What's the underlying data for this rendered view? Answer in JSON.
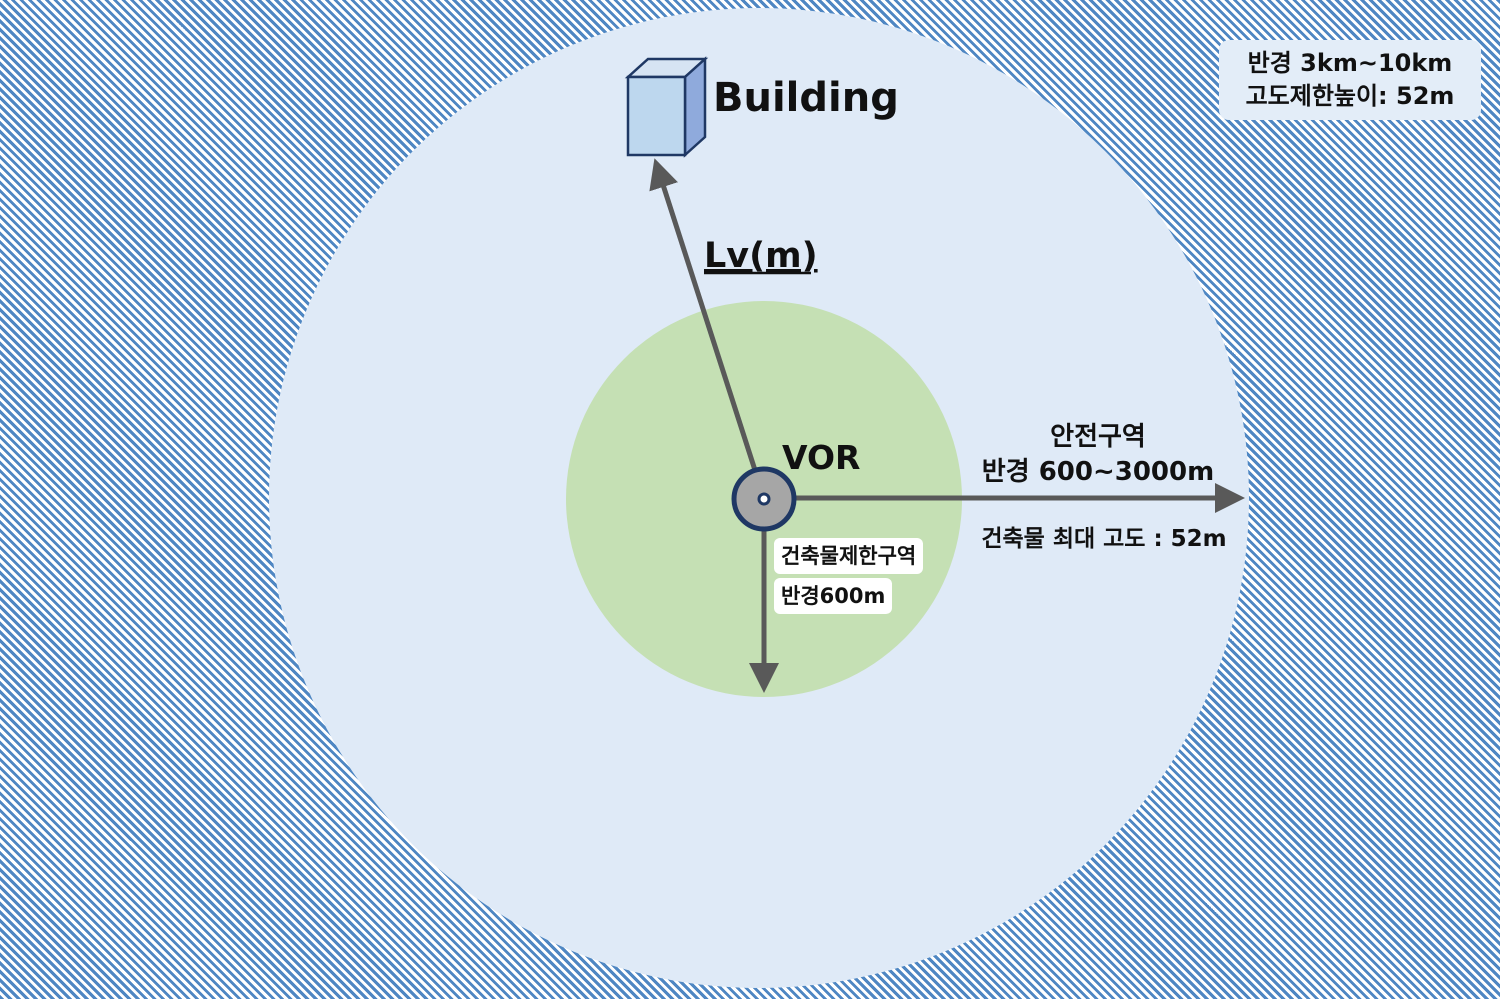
{
  "legend": {
    "radius_text": "반경 3km~10km",
    "height_text": "고도제한높이: 52m"
  },
  "building": {
    "label": "Building"
  },
  "distance": {
    "label": "Lv(m)"
  },
  "vor": {
    "label": "VOR"
  },
  "safety_zone": {
    "title": "안전구역",
    "radius": "반경 600~3000m",
    "max_height": "건축물 최대 고도 : 52m"
  },
  "restricted_zone": {
    "title": "건축물제한구역",
    "radius": "반경600m"
  },
  "colors": {
    "outer_hatch": "#4f87c3",
    "safety_zone_fill": "#dfeaf7",
    "restricted_zone_fill": "#c5e0b4",
    "arrow": "#595959",
    "building_front": "#bdd7ee",
    "building_side": "#8faadc",
    "vor_fill": "#a6a6a6",
    "vor_ring": "#1f3864"
  }
}
